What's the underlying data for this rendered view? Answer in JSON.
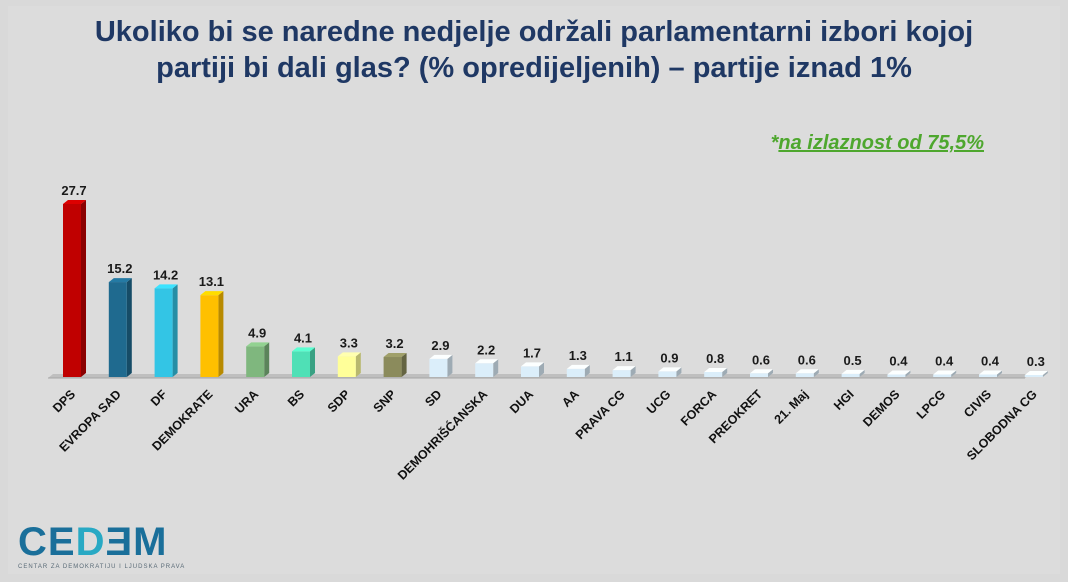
{
  "title_line1": "Ukoliko bi se naredne nedjelje održali parlamentarni izbori kojoj",
  "title_line2": "partiji bi dali glas? (% opredijeljenih) – partije iznad 1%",
  "note_star": "*",
  "note_text": "na izlaznost od 75,5%",
  "logo": {
    "word_part1": "CE",
    "word_part2": "D",
    "word_part3": "Ǝ",
    "word_part4": "M",
    "subtitle": "CENTAR ZA DEMOKRATIJU I LJUDSKA PRAVA"
  },
  "chart_data": {
    "type": "bar",
    "categories": [
      "DPS",
      "EVROPA SAD",
      "DF",
      "DEMOKRATE",
      "URA",
      "BS",
      "SDP",
      "SNP",
      "SD",
      "DEMOHRIŠĆANSKA",
      "DUA",
      "AA",
      "PRAVA CG",
      "UCG",
      "FORCA",
      "PREOKRET",
      "21. Maj",
      "HGI",
      "DEMOS",
      "LPCG",
      "CIVIS",
      "SLOBODNA CG"
    ],
    "values": [
      27.7,
      15.2,
      14.2,
      13.1,
      4.9,
      4.1,
      3.3,
      3.2,
      2.9,
      2.2,
      1.7,
      1.3,
      1.1,
      0.9,
      0.8,
      0.6,
      0.6,
      0.5,
      0.4,
      0.4,
      0.4,
      0.3
    ],
    "value_labels": [
      "27.7",
      "15.2",
      "14.2",
      "13.1",
      "4.9",
      "4.1",
      "3.3",
      "3.2",
      "2.9",
      "2.2",
      "1.7",
      "1.3",
      "1.1",
      "0.9",
      "0.8",
      "0.6",
      "0.6",
      "0.5",
      "0.4",
      "0.4",
      "0.4",
      "0.3"
    ],
    "colors": [
      "#c00000",
      "#1f6a8f",
      "#33c5e5",
      "#ffc000",
      "#7fb77e",
      "#4fe0b6",
      "#ffff99",
      "#8b8b5c",
      "#dbeefa",
      "#dbeefa",
      "#dbeefa",
      "#dbeefa",
      "#dbeefa",
      "#dbeefa",
      "#dbeefa",
      "#dbeefa",
      "#dbeefa",
      "#dbeefa",
      "#dbeefa",
      "#dbeefa",
      "#dbeefa",
      "#dbeefa"
    ],
    "ylim": [
      0,
      28
    ],
    "grid": false,
    "legend": "none"
  }
}
